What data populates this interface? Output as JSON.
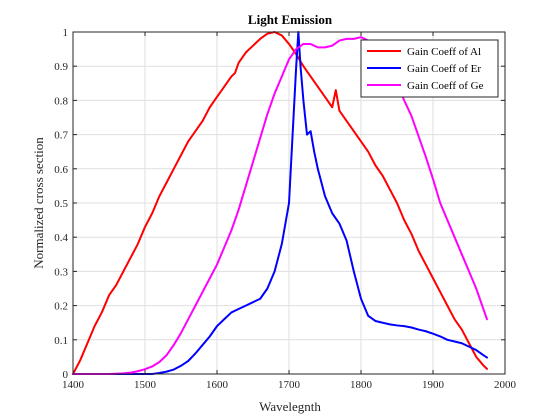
{
  "chart_data": {
    "type": "line",
    "title": "Light Emission",
    "xlabel": "Wavelegnth",
    "ylabel": "Normalized cross section",
    "xlim": [
      1400,
      2000
    ],
    "ylim": [
      0,
      1
    ],
    "xticks": [
      "1400",
      "1500",
      "1600",
      "1700",
      "1800",
      "1900",
      "2000"
    ],
    "yticks": [
      "0",
      "0.1",
      "0.2",
      "0.3",
      "0.4",
      "0.5",
      "0.6",
      "0.7",
      "0.8",
      "0.9",
      "1"
    ],
    "grid": true,
    "legend_position": "top-right",
    "series": [
      {
        "name": "Gain Coeff of Al",
        "color": "#ff0000",
        "x": [
          1400,
          1410,
          1420,
          1430,
          1440,
          1450,
          1460,
          1470,
          1480,
          1490,
          1500,
          1510,
          1520,
          1530,
          1540,
          1550,
          1560,
          1570,
          1580,
          1590,
          1600,
          1610,
          1620,
          1625,
          1630,
          1640,
          1650,
          1660,
          1670,
          1680,
          1690,
          1700,
          1710,
          1720,
          1730,
          1740,
          1750,
          1760,
          1765,
          1770,
          1780,
          1790,
          1800,
          1810,
          1820,
          1830,
          1840,
          1850,
          1860,
          1870,
          1880,
          1890,
          1900,
          1910,
          1920,
          1930,
          1940,
          1950,
          1960,
          1970,
          1975
        ],
        "y": [
          0.0,
          0.04,
          0.09,
          0.14,
          0.18,
          0.23,
          0.26,
          0.3,
          0.34,
          0.38,
          0.43,
          0.47,
          0.52,
          0.56,
          0.6,
          0.64,
          0.68,
          0.71,
          0.74,
          0.78,
          0.81,
          0.84,
          0.87,
          0.88,
          0.91,
          0.94,
          0.96,
          0.98,
          0.995,
          1.0,
          0.99,
          0.965,
          0.935,
          0.9,
          0.87,
          0.84,
          0.81,
          0.78,
          0.83,
          0.77,
          0.74,
          0.71,
          0.68,
          0.65,
          0.61,
          0.58,
          0.54,
          0.5,
          0.45,
          0.41,
          0.36,
          0.32,
          0.28,
          0.24,
          0.2,
          0.16,
          0.13,
          0.09,
          0.05,
          0.025,
          0.015
        ]
      },
      {
        "name": "Gain Coeff of Er",
        "color": "#0000ff",
        "x": [
          1400,
          1450,
          1480,
          1500,
          1510,
          1520,
          1530,
          1540,
          1550,
          1560,
          1570,
          1580,
          1590,
          1600,
          1610,
          1620,
          1630,
          1640,
          1650,
          1660,
          1670,
          1680,
          1690,
          1700,
          1705,
          1710,
          1713,
          1716,
          1720,
          1725,
          1730,
          1735,
          1740,
          1750,
          1760,
          1770,
          1780,
          1790,
          1800,
          1810,
          1820,
          1830,
          1840,
          1850,
          1860,
          1870,
          1880,
          1890,
          1900,
          1910,
          1920,
          1930,
          1940,
          1950,
          1960,
          1970,
          1975
        ],
        "y": [
          0.0,
          0.0,
          0.0,
          0.0,
          0.0,
          0.003,
          0.007,
          0.013,
          0.024,
          0.038,
          0.06,
          0.085,
          0.11,
          0.14,
          0.16,
          0.18,
          0.19,
          0.2,
          0.21,
          0.22,
          0.25,
          0.3,
          0.38,
          0.5,
          0.7,
          0.9,
          1.0,
          0.9,
          0.8,
          0.7,
          0.71,
          0.65,
          0.6,
          0.52,
          0.47,
          0.44,
          0.39,
          0.3,
          0.22,
          0.17,
          0.155,
          0.15,
          0.145,
          0.142,
          0.14,
          0.136,
          0.13,
          0.125,
          0.118,
          0.11,
          0.1,
          0.095,
          0.09,
          0.08,
          0.07,
          0.055,
          0.048
        ]
      },
      {
        "name": "Gain Coeff of Ge",
        "color": "#ff00ff",
        "x": [
          1400,
          1450,
          1470,
          1480,
          1490,
          1500,
          1510,
          1520,
          1530,
          1540,
          1550,
          1560,
          1570,
          1580,
          1590,
          1600,
          1610,
          1620,
          1630,
          1640,
          1650,
          1660,
          1670,
          1680,
          1690,
          1700,
          1710,
          1720,
          1730,
          1740,
          1750,
          1760,
          1770,
          1780,
          1790,
          1800,
          1810,
          1820,
          1830,
          1840,
          1850,
          1860,
          1870,
          1880,
          1890,
          1900,
          1910,
          1920,
          1930,
          1940,
          1950,
          1960,
          1970,
          1975
        ],
        "y": [
          0.0,
          0.0,
          0.002,
          0.004,
          0.008,
          0.014,
          0.022,
          0.035,
          0.055,
          0.085,
          0.12,
          0.16,
          0.2,
          0.24,
          0.28,
          0.32,
          0.37,
          0.42,
          0.48,
          0.55,
          0.62,
          0.69,
          0.76,
          0.82,
          0.87,
          0.92,
          0.95,
          0.965,
          0.965,
          0.955,
          0.955,
          0.96,
          0.975,
          0.98,
          0.98,
          0.985,
          0.975,
          0.95,
          0.92,
          0.885,
          0.85,
          0.8,
          0.755,
          0.695,
          0.635,
          0.57,
          0.5,
          0.45,
          0.4,
          0.35,
          0.3,
          0.25,
          0.19,
          0.16
        ]
      }
    ]
  }
}
